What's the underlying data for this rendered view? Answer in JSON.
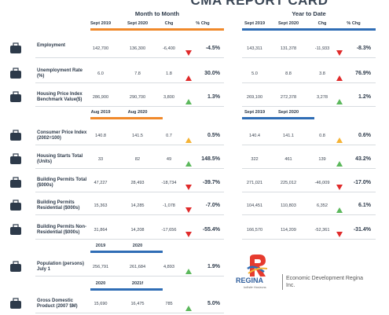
{
  "title": "CMA REPORT CARD",
  "sections": {
    "month": "Month to Month",
    "ytd": "Year to Date"
  },
  "groups": [
    {
      "month_headers": [
        "Sept 2019",
        "Sept 2020",
        "Chg",
        "% Chg"
      ],
      "ytd_headers": [
        "Sept 2019",
        "Sept 2020",
        "Chg",
        "% Chg"
      ],
      "rows": [
        {
          "label": "Employment",
          "month": {
            "values": [
              "142,700",
              "136,300",
              "-6,400"
            ],
            "pct": "-4.5%",
            "arrow": {
              "dir": "down",
              "color": "#e02b2b"
            }
          },
          "ytd": {
            "values": [
              "143,311",
              "131,378",
              "-11,933"
            ],
            "pct": "-8.3%",
            "arrow": {
              "dir": "down",
              "color": "#e02b2b"
            }
          }
        },
        {
          "label": "Unemployment Rate (%)",
          "month": {
            "values": [
              "6.0",
              "7.8",
              "1.8"
            ],
            "pct": "30.0%",
            "arrow": {
              "dir": "up",
              "color": "#e02b2b"
            }
          },
          "ytd": {
            "values": [
              "5.0",
              "8.8",
              "3.8"
            ],
            "pct": "76.9%",
            "arrow": {
              "dir": "up",
              "color": "#e02b2b"
            }
          }
        },
        {
          "label": "Housing Price Index Benchmark Value($)",
          "month": {
            "values": [
              "286,900",
              "290,700",
              "3,800"
            ],
            "pct": "1.3%",
            "arrow": {
              "dir": "up",
              "color": "#5cb85c"
            }
          },
          "ytd": {
            "values": [
              "269,100",
              "272,378",
              "3,278"
            ],
            "pct": "1.2%",
            "arrow": {
              "dir": "up",
              "color": "#5cb85c"
            }
          }
        }
      ]
    },
    {
      "month_headers": [
        "Aug 2019",
        "Aug 2020"
      ],
      "ytd_headers": [
        "Sept 2019",
        "Sept 2020"
      ],
      "rows": [
        {
          "label": "Consumer Price Index (2002=100)",
          "month": {
            "values": [
              "140.8",
              "141.5",
              "0.7"
            ],
            "pct": "0.5%",
            "arrow": {
              "dir": "up",
              "color": "#f5b335"
            }
          },
          "ytd": {
            "values": [
              "140.4",
              "141.1",
              "0.8"
            ],
            "pct": "0.6%",
            "arrow": {
              "dir": "up",
              "color": "#f5b335"
            }
          }
        },
        {
          "label": "Housing Starts Total (Units)",
          "month": {
            "values": [
              "33",
              "82",
              "49"
            ],
            "pct": "148.5%",
            "arrow": {
              "dir": "up",
              "color": "#5cb85c"
            }
          },
          "ytd": {
            "values": [
              "322",
              "461",
              "139"
            ],
            "pct": "43.2%",
            "arrow": {
              "dir": "up",
              "color": "#5cb85c"
            }
          }
        },
        {
          "label": "Building Permits Total ($000s)",
          "month": {
            "values": [
              "47,227",
              "28,493",
              "-18,734"
            ],
            "pct": "-39.7%",
            "arrow": {
              "dir": "down",
              "color": "#e02b2b"
            }
          },
          "ytd": {
            "values": [
              "271,021",
              "225,012",
              "-46,009"
            ],
            "pct": "-17.0%",
            "arrow": {
              "dir": "down",
              "color": "#e02b2b"
            }
          }
        },
        {
          "label": "Building Permits Residential ($000s)",
          "month": {
            "values": [
              "15,363",
              "14,285",
              "-1,078"
            ],
            "pct": "-7.0%",
            "arrow": {
              "dir": "down",
              "color": "#e02b2b"
            }
          },
          "ytd": {
            "values": [
              "104,451",
              "110,803",
              "6,352"
            ],
            "pct": "6.1%",
            "arrow": {
              "dir": "up",
              "color": "#5cb85c"
            }
          }
        },
        {
          "label": "Building Permits Non-Residential ($000s)",
          "month": {
            "values": [
              "31,864",
              "14,208",
              "-17,656"
            ],
            "pct": "-55.4%",
            "arrow": {
              "dir": "down",
              "color": "#e02b2b"
            }
          },
          "ytd": {
            "values": [
              "166,570",
              "114,209",
              "-52,361"
            ],
            "pct": "-31.4%",
            "arrow": {
              "dir": "down",
              "color": "#e02b2b"
            }
          }
        }
      ]
    },
    {
      "month_headers": [
        "2019",
        "2020"
      ],
      "rows": [
        {
          "label": "Population (persons) July 1",
          "month": {
            "values": [
              "256,791",
              "261,684",
              "4,893"
            ],
            "pct": "1.9%",
            "arrow": {
              "dir": "up",
              "color": "#5cb85c"
            }
          }
        }
      ]
    },
    {
      "month_headers": [
        "2020",
        "2021f"
      ],
      "rows": [
        {
          "label": "Gross Domestic Product (2007 $M)",
          "month": {
            "values": [
              "15,690",
              "16,475",
              "785"
            ],
            "pct": "5.0%",
            "arrow": {
              "dir": "up",
              "color": "#5cb85c"
            }
          }
        }
      ]
    }
  ],
  "logo": {
    "name": "REGINA",
    "tagline": "Infinite Horizons",
    "org": "Economic Development Regina Inc."
  }
}
